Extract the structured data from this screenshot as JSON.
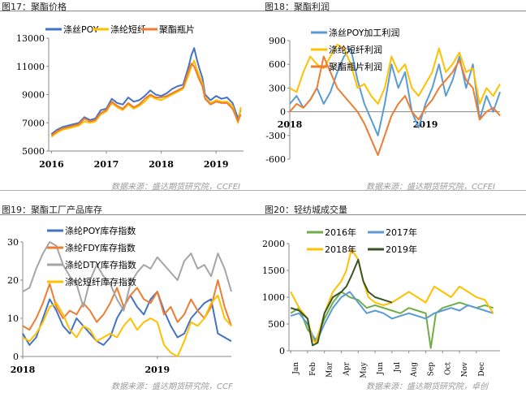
{
  "panels": [
    {
      "title": "图17：聚酯价格",
      "source": "数据来源：盛达期货研究院，CCFEI"
    },
    {
      "title": "图18：聚酯利润",
      "source": "数据来源：盛达期货研究院，CCFEI"
    },
    {
      "title": "图19：聚酯工厂产品库存",
      "source": "数据来源：盛达期货研究院，CCF"
    },
    {
      "title": "图20：轻纺城成交量",
      "source": "数据来源：盛达期货研究院，卓创"
    }
  ],
  "colors": {
    "blue": "#4472C4",
    "yellow": "#FFC000",
    "orange": "#ED7D31",
    "gray": "#A5A5A5",
    "green": "#70AD47",
    "lightblue": "#5B9BD5",
    "darkgreen": "#375623"
  },
  "chart_data": [
    {
      "type": "line",
      "title": "",
      "xlabel": "",
      "ylabel": "",
      "ylim": [
        5000,
        13000
      ],
      "y_ticks": [
        "5000",
        "7000",
        "9000",
        "11000",
        "13000"
      ],
      "x_ticks": [
        "2016",
        "2017",
        "2018",
        "2019"
      ],
      "x_tick_pos": [
        0,
        1,
        2,
        3
      ],
      "xlim": [
        -0.05,
        3.5
      ],
      "legend": "top-left",
      "series": [
        {
          "name": "涤丝POY",
          "color": "#4472C4",
          "x": [
            0,
            0.1,
            0.2,
            0.3,
            0.4,
            0.5,
            0.6,
            0.7,
            0.8,
            0.9,
            1.0,
            1.1,
            1.2,
            1.3,
            1.4,
            1.5,
            1.6,
            1.7,
            1.8,
            1.9,
            2.0,
            2.1,
            2.2,
            2.3,
            2.4,
            2.5,
            2.55,
            2.6,
            2.65,
            2.7,
            2.75,
            2.8,
            2.9,
            3.0,
            3.1,
            3.2,
            3.3,
            3.4,
            3.45
          ],
          "y": [
            6200,
            6500,
            6700,
            6800,
            6900,
            7000,
            7400,
            7200,
            7300,
            7900,
            8000,
            8700,
            8400,
            8300,
            8800,
            8500,
            8600,
            8900,
            9300,
            9000,
            8900,
            9100,
            9400,
            9600,
            9700,
            11000,
            11800,
            12300,
            11500,
            10800,
            10200,
            9000,
            8600,
            8900,
            8700,
            8800,
            8400,
            7300,
            7900
          ]
        },
        {
          "name": "涤纶短纤",
          "color": "#FFC000",
          "x": [
            0,
            0.1,
            0.2,
            0.3,
            0.4,
            0.5,
            0.6,
            0.7,
            0.8,
            0.9,
            1.0,
            1.1,
            1.2,
            1.3,
            1.4,
            1.5,
            1.6,
            1.7,
            1.8,
            1.9,
            2.0,
            2.1,
            2.2,
            2.3,
            2.4,
            2.5,
            2.55,
            2.6,
            2.65,
            2.7,
            2.75,
            2.8,
            2.9,
            3.0,
            3.1,
            3.2,
            3.3,
            3.4,
            3.45
          ],
          "y": [
            6000,
            6300,
            6500,
            6600,
            6700,
            6800,
            7100,
            7000,
            7100,
            7600,
            7800,
            8400,
            8100,
            7900,
            8300,
            8000,
            8200,
            8500,
            8900,
            8700,
            8600,
            8800,
            9000,
            9200,
            9400,
            10400,
            11000,
            11400,
            10800,
            10300,
            9800,
            8800,
            8400,
            8600,
            8500,
            8500,
            8200,
            7000,
            8100
          ]
        },
        {
          "name": "聚酯瓶片",
          "color": "#ED7D31",
          "x": [
            0,
            0.1,
            0.2,
            0.3,
            0.4,
            0.5,
            0.6,
            0.7,
            0.8,
            0.9,
            1.0,
            1.1,
            1.2,
            1.3,
            1.4,
            1.5,
            1.6,
            1.7,
            1.8,
            1.9,
            2.0,
            2.1,
            2.2,
            2.3,
            2.4,
            2.5,
            2.55,
            2.6,
            2.65,
            2.7,
            2.75,
            2.8,
            2.9,
            3.0,
            3.1,
            3.2,
            3.3,
            3.4,
            3.45
          ],
          "y": [
            6100,
            6400,
            6600,
            6700,
            6800,
            6900,
            7300,
            7100,
            7200,
            7700,
            7900,
            8500,
            8200,
            8000,
            8400,
            8100,
            8300,
            8700,
            9000,
            8800,
            8800,
            8900,
            9100,
            9300,
            9500,
            10700,
            11200,
            11000,
            10500,
            10000,
            9600,
            8700,
            8300,
            8500,
            8400,
            8400,
            8000,
            7100,
            7600
          ]
        }
      ]
    },
    {
      "type": "line",
      "title": "",
      "xlabel": "",
      "ylabel": "",
      "ylim": [
        -600,
        900
      ],
      "y_ticks": [
        "-600",
        "-300",
        "0",
        "300",
        "600",
        "900"
      ],
      "x_ticks": [
        "2018",
        "2019"
      ],
      "x_tick_pos": [
        0,
        1
      ],
      "xlim": [
        0,
        1.55
      ],
      "legend": "top-right",
      "series": [
        {
          "name": "涤丝POY加工利润",
          "color": "#5B9BD5",
          "x": [
            0,
            0.05,
            0.1,
            0.15,
            0.2,
            0.25,
            0.3,
            0.35,
            0.4,
            0.45,
            0.5,
            0.55,
            0.6,
            0.65,
            0.7,
            0.75,
            0.8,
            0.85,
            0.9,
            0.95,
            1.0,
            1.05,
            1.1,
            1.15,
            1.2,
            1.25,
            1.3,
            1.35,
            1.4,
            1.45,
            1.5,
            1.55
          ],
          "y": [
            100,
            200,
            50,
            150,
            300,
            100,
            250,
            500,
            700,
            800,
            400,
            100,
            -100,
            -300,
            100,
            600,
            300,
            500,
            0,
            -200,
            100,
            300,
            600,
            200,
            400,
            700,
            300,
            600,
            -100,
            200,
            0,
            250
          ]
        },
        {
          "name": "涤纶短纤利润",
          "color": "#FFC000",
          "x": [
            0,
            0.05,
            0.1,
            0.15,
            0.2,
            0.25,
            0.3,
            0.35,
            0.4,
            0.45,
            0.5,
            0.55,
            0.6,
            0.65,
            0.7,
            0.75,
            0.8,
            0.85,
            0.9,
            0.95,
            1.0,
            1.05,
            1.1,
            1.15,
            1.2,
            1.25,
            1.3,
            1.35,
            1.4,
            1.45,
            1.5,
            1.55
          ],
          "y": [
            300,
            250,
            500,
            700,
            600,
            550,
            700,
            850,
            800,
            600,
            300,
            350,
            200,
            100,
            300,
            700,
            500,
            600,
            300,
            200,
            350,
            500,
            800,
            500,
            600,
            750,
            500,
            550,
            100,
            300,
            200,
            350
          ]
        },
        {
          "name": "聚酯瓶片利润",
          "color": "#ED7D31",
          "x": [
            0,
            0.05,
            0.1,
            0.15,
            0.2,
            0.25,
            0.3,
            0.35,
            0.4,
            0.45,
            0.5,
            0.55,
            0.6,
            0.65,
            0.7,
            0.75,
            0.8,
            0.85,
            0.9,
            0.95,
            1.0,
            1.05,
            1.1,
            1.15,
            1.2,
            1.25,
            1.3,
            1.35,
            1.4,
            1.45,
            1.5,
            1.55
          ],
          "y": [
            0,
            100,
            50,
            150,
            300,
            700,
            500,
            300,
            200,
            100,
            0,
            -150,
            -350,
            -550,
            -300,
            -50,
            100,
            200,
            0,
            -100,
            50,
            150,
            300,
            400,
            500,
            650,
            400,
            300,
            -100,
            0,
            50,
            -50
          ]
        }
      ]
    },
    {
      "type": "line",
      "title": "",
      "xlabel": "",
      "ylabel": "",
      "ylim": [
        0,
        30
      ],
      "y_ticks": [
        "0",
        "10",
        "20",
        "30"
      ],
      "x_ticks": [
        "2018",
        "2019"
      ],
      "x_tick_pos": [
        0,
        1
      ],
      "xlim": [
        0,
        1.55
      ],
      "legend": "top-left",
      "series": [
        {
          "name": "涤纶POY库存指数",
          "color": "#4472C4",
          "x": [
            0,
            0.05,
            0.1,
            0.15,
            0.2,
            0.25,
            0.3,
            0.35,
            0.4,
            0.45,
            0.5,
            0.55,
            0.6,
            0.65,
            0.7,
            0.75,
            0.8,
            0.85,
            0.9,
            0.95,
            1.0,
            1.05,
            1.1,
            1.15,
            1.2,
            1.25,
            1.3,
            1.35,
            1.4,
            1.45,
            1.5,
            1.55
          ],
          "y": [
            6,
            3,
            5,
            10,
            15,
            12,
            8,
            6,
            10,
            8,
            6,
            4,
            3,
            5,
            10,
            13,
            16,
            13,
            11,
            15,
            17,
            12,
            8,
            5,
            6,
            10,
            12,
            14,
            15,
            6,
            5,
            4
          ]
        },
        {
          "name": "涤纶FDY库存指数",
          "color": "#ED7D31",
          "x": [
            0,
            0.05,
            0.1,
            0.15,
            0.2,
            0.25,
            0.3,
            0.35,
            0.4,
            0.45,
            0.5,
            0.55,
            0.6,
            0.65,
            0.7,
            0.75,
            0.8,
            0.85,
            0.9,
            0.95,
            1.0,
            1.05,
            1.1,
            1.15,
            1.2,
            1.25,
            1.3,
            1.35,
            1.4,
            1.45,
            1.5,
            1.55
          ],
          "y": [
            8,
            7,
            10,
            14,
            19,
            13,
            10,
            12,
            11,
            14,
            12,
            9,
            11,
            14,
            18,
            13,
            16,
            18,
            15,
            14,
            17,
            11,
            13,
            9,
            11,
            15,
            12,
            10,
            13,
            20,
            13,
            8
          ]
        },
        {
          "name": "涤纶DTY库存指数",
          "color": "#A5A5A5",
          "x": [
            0,
            0.05,
            0.1,
            0.15,
            0.2,
            0.25,
            0.3,
            0.35,
            0.4,
            0.45,
            0.5,
            0.55,
            0.6,
            0.65,
            0.7,
            0.75,
            0.8,
            0.85,
            0.9,
            0.95,
            1.0,
            1.05,
            1.1,
            1.15,
            1.2,
            1.25,
            1.3,
            1.35,
            1.4,
            1.45,
            1.5,
            1.55
          ],
          "y": [
            17,
            18,
            23,
            27,
            30,
            29,
            24,
            21,
            19,
            13,
            20,
            24,
            21,
            19,
            15,
            12,
            19,
            22,
            24,
            23,
            26,
            24,
            22,
            20,
            25,
            27,
            23,
            24,
            21,
            27,
            23,
            17
          ]
        },
        {
          "name": "涤纶短纤库存指数",
          "color": "#FFC000",
          "x": [
            0,
            0.05,
            0.1,
            0.15,
            0.2,
            0.25,
            0.3,
            0.35,
            0.4,
            0.45,
            0.5,
            0.55,
            0.6,
            0.65,
            0.7,
            0.75,
            0.8,
            0.85,
            0.9,
            0.95,
            1.0,
            1.05,
            1.1,
            1.15,
            1.2,
            1.25,
            1.3,
            1.35,
            1.4,
            1.45,
            1.5,
            1.55
          ],
          "y": [
            5,
            4,
            6,
            9,
            13,
            14,
            11,
            7,
            5,
            8,
            7,
            4,
            5,
            6,
            5,
            8,
            10,
            7,
            9,
            10,
            9,
            3,
            1,
            0,
            4,
            9,
            8,
            10,
            14,
            16,
            10,
            8
          ]
        }
      ]
    },
    {
      "type": "line",
      "title": "",
      "xlabel": "",
      "ylabel": "",
      "ylim": [
        0,
        2000
      ],
      "y_ticks": [
        "0",
        "500",
        "1000",
        "1500",
        "2000"
      ],
      "x_ticks": [
        "Jan",
        "Feb",
        "Mar",
        "Apr",
        "May",
        "Jun",
        "Jul",
        "Aug",
        "Sep",
        "Oct",
        "Nov",
        "Dec"
      ],
      "x_tick_pos": [
        0,
        1,
        2,
        3,
        4,
        5,
        6,
        7,
        8,
        9,
        10,
        11
      ],
      "xlim": [
        -0.1,
        12.4
      ],
      "legend": "top-left",
      "series": [
        {
          "name": "2016年",
          "color": "#70AD47",
          "x": [
            0,
            0.5,
            1,
            1.5,
            2,
            2.5,
            3,
            3.5,
            4,
            4.5,
            5,
            5.5,
            6,
            6.5,
            7,
            7.5,
            8,
            8.3,
            8.6,
            9,
            9.5,
            10,
            10.5,
            11,
            11.5,
            12
          ],
          "y": [
            700,
            800,
            400,
            200,
            600,
            900,
            1100,
            1000,
            950,
            800,
            850,
            800,
            750,
            700,
            800,
            750,
            700,
            50,
            700,
            800,
            850,
            900,
            850,
            800,
            850,
            800
          ]
        },
        {
          "name": "2017年",
          "color": "#5B9BD5",
          "x": [
            0,
            0.5,
            1,
            1.5,
            2,
            2.5,
            3,
            3.5,
            4,
            4.5,
            5,
            5.5,
            6,
            6.5,
            7,
            7.5,
            8,
            8.5,
            9,
            9.5,
            10,
            10.5,
            11,
            11.5,
            12
          ],
          "y": [
            650,
            700,
            500,
            150,
            500,
            800,
            1000,
            1100,
            900,
            700,
            750,
            700,
            600,
            650,
            700,
            650,
            600,
            700,
            750,
            800,
            750,
            850,
            800,
            750,
            700
          ]
        },
        {
          "name": "2018年",
          "color": "#FFC000",
          "x": [
            0,
            0.5,
            1,
            1.3,
            1.5,
            2,
            2.5,
            3,
            3.3,
            3.6,
            4,
            4.3,
            4.6,
            5,
            5.5,
            6,
            6.5,
            7,
            7.5,
            8,
            8.5,
            9,
            9.5,
            10,
            10.5,
            11,
            11.5,
            12
          ],
          "y": [
            1100,
            800,
            600,
            200,
            150,
            700,
            1100,
            1300,
            1500,
            1900,
            1700,
            1300,
            1000,
            900,
            850,
            900,
            1000,
            1100,
            1000,
            900,
            1200,
            1100,
            1000,
            1200,
            1100,
            1000,
            950,
            700
          ]
        },
        {
          "name": "2019年",
          "color": "#375623",
          "x": [
            0,
            0.5,
            1,
            1.3,
            1.6,
            2,
            2.5,
            3,
            3.3,
            3.6,
            4,
            4.3,
            4.6,
            5,
            5.5,
            6
          ],
          "y": [
            800,
            750,
            600,
            100,
            150,
            700,
            1000,
            1100,
            1200,
            1400,
            1700,
            1300,
            1100,
            1000,
            950,
            900
          ]
        }
      ]
    }
  ]
}
